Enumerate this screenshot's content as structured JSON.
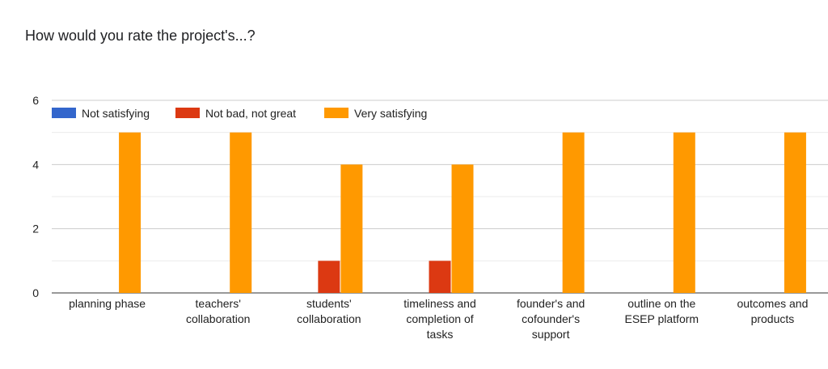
{
  "chart_data": {
    "type": "bar",
    "title": "How would you rate the project's...?",
    "categories": [
      [
        "planning phase"
      ],
      [
        "teachers'",
        "collaboration"
      ],
      [
        "students'",
        "collaboration"
      ],
      [
        "timeliness and",
        "completion of",
        "tasks"
      ],
      [
        "founder's and",
        "cofounder's",
        "support"
      ],
      [
        "outline on the",
        "ESEP platform"
      ],
      [
        "outcomes and",
        "products"
      ]
    ],
    "series": [
      {
        "name": "Not satisfying",
        "color": "#3366cc",
        "values": [
          0,
          0,
          0,
          0,
          0,
          0,
          0
        ]
      },
      {
        "name": "Not bad, not great",
        "color": "#dc3912",
        "values": [
          0,
          0,
          1,
          1,
          0,
          0,
          0
        ]
      },
      {
        "name": "Very satisfying",
        "color": "#ff9900",
        "values": [
          5,
          5,
          4,
          4,
          5,
          5,
          5
        ]
      }
    ],
    "ylim": [
      0,
      6
    ],
    "yticks": [
      0,
      2,
      4,
      6
    ],
    "gridlines": [
      1,
      3,
      5
    ],
    "legend": "top-left",
    "xlabel": "",
    "ylabel": ""
  }
}
